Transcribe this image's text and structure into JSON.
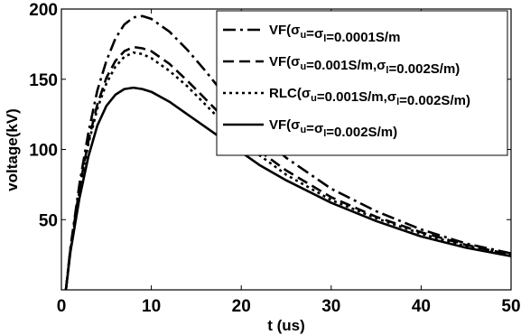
{
  "chart_data": {
    "type": "line",
    "title": "",
    "xlabel": "t (us)",
    "ylabel": "voltage(kV)",
    "xlim": [
      0,
      50
    ],
    "ylim": [
      0,
      200
    ],
    "xticks": [
      "0",
      "10",
      "20",
      "30",
      "40",
      "50"
    ],
    "yticks": [
      "50",
      "100",
      "150",
      "200"
    ],
    "grid": false,
    "legend_position": "top-right",
    "colors": {
      "series": "#000000",
      "axes": "#000000",
      "background": "#ffffff"
    },
    "series": [
      {
        "name": "VF(σu=σl=0.0001S/m",
        "legend": {
          "pre": "VF(",
          "sub1": "u",
          "mid1": "=",
          "sub2": "l",
          "post": "=0.0001S/m"
        },
        "line_style": "dash-dot",
        "x": [
          0.5,
          1,
          2,
          3,
          4,
          5,
          6,
          7,
          8,
          9,
          10,
          12,
          14,
          16,
          18,
          20,
          22,
          25,
          30,
          35,
          40,
          45,
          50
        ],
        "y": [
          0,
          30,
          75,
          112,
          142,
          163,
          179,
          189,
          194,
          195,
          193,
          184,
          171,
          156,
          140,
          125,
          111,
          94,
          72,
          56,
          43,
          33,
          26
        ]
      },
      {
        "name": "VF(σu=0.001S/m,σl=0.002S/m)",
        "legend": {
          "pre": "VF(",
          "sub1": "u",
          "mid1": "=0.001S/m,",
          "sub2": "l",
          "post": "=0.002S/m)"
        },
        "line_style": "dashed",
        "x": [
          0.5,
          1,
          2,
          3,
          4,
          5,
          6,
          7,
          8,
          9,
          10,
          12,
          14,
          16,
          18,
          20,
          22,
          25,
          30,
          35,
          40,
          45,
          50
        ],
        "y": [
          0,
          29,
          72,
          106,
          132,
          151,
          163,
          170,
          173,
          172,
          170,
          161,
          149,
          136,
          123,
          110,
          99,
          85,
          66,
          52,
          41,
          32,
          25
        ]
      },
      {
        "name": "RLC(σu=0.001S/m,σl=0.002S/m)",
        "legend": {
          "pre": "RLC(",
          "sub1": "u",
          "mid1": "=0.001S/m,",
          "sub2": "l",
          "post": "=0.002S/m)"
        },
        "line_style": "dotted",
        "x": [
          0.5,
          1,
          2,
          3,
          4,
          5,
          6,
          7,
          8,
          9,
          10,
          12,
          14,
          16,
          18,
          20,
          22,
          25,
          30,
          35,
          40,
          45,
          50
        ],
        "y": [
          0,
          28,
          70,
          104,
          129,
          147,
          159,
          166,
          169,
          168,
          165,
          156,
          145,
          132,
          119,
          107,
          96,
          82,
          64,
          51,
          40,
          31,
          25
        ]
      },
      {
        "name": "VF(σu=σl=0.002S/m)",
        "legend": {
          "pre": "VF(",
          "sub1": "u",
          "mid1": "=",
          "sub2": "l",
          "post": "=0.002S/m)"
        },
        "line_style": "solid",
        "x": [
          0.5,
          1,
          2,
          3,
          4,
          5,
          6,
          7,
          8,
          9,
          10,
          12,
          14,
          16,
          18,
          20,
          22,
          25,
          30,
          35,
          40,
          45,
          50
        ],
        "y": [
          0,
          27,
          65,
          95,
          117,
          131,
          139,
          143,
          144,
          143,
          141,
          134,
          125,
          116,
          107,
          98,
          89,
          78,
          62,
          49,
          38,
          30,
          24
        ]
      }
    ]
  }
}
